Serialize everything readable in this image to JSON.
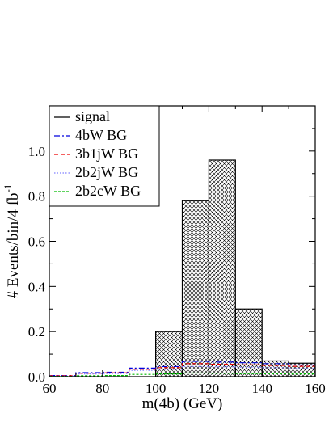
{
  "chart_data": {
    "type": "histogram",
    "xlabel": "m(4b) (GeV)",
    "ylabel": "# Events/bin/4 fb",
    "ylabel_superscript": "-1",
    "xlim": [
      60,
      160
    ],
    "ylim": [
      0,
      1.2
    ],
    "xticks": [
      "60",
      "80",
      "100",
      "120",
      "140",
      "160"
    ],
    "yticks": [
      "0.0",
      "0.2",
      "0.4",
      "0.6",
      "0.8",
      "1.0"
    ],
    "bin_edges": [
      60,
      70,
      80,
      90,
      100,
      110,
      120,
      130,
      140,
      150,
      160
    ],
    "legend_position": "top-left",
    "series": [
      {
        "name": "signal",
        "color": "#000000",
        "style": "solid-hatched",
        "values": [
          0.0,
          0.0,
          0.0,
          0.0,
          0.2,
          0.78,
          0.96,
          0.3,
          0.07,
          0.06
        ]
      },
      {
        "name": "4bW BG",
        "color": "#0000dd",
        "style": "dashdot",
        "values": [
          0.005,
          0.018,
          0.02,
          0.038,
          0.045,
          0.068,
          0.065,
          0.062,
          0.058,
          0.052
        ]
      },
      {
        "name": "3b1jW BG",
        "color": "#ee0000",
        "style": "dashed",
        "values": [
          0.004,
          0.015,
          0.017,
          0.033,
          0.04,
          0.058,
          0.055,
          0.053,
          0.05,
          0.046
        ]
      },
      {
        "name": "2b2jW BG",
        "color": "#8080ff",
        "style": "dotted",
        "values": [
          0.003,
          0.012,
          0.014,
          0.028,
          0.032,
          0.045,
          0.044,
          0.042,
          0.04,
          0.037
        ]
      },
      {
        "name": "2b2cW BG",
        "color": "#00bb00",
        "style": "dashed-fine",
        "values": [
          0.001,
          0.004,
          0.005,
          0.01,
          0.012,
          0.016,
          0.015,
          0.014,
          0.013,
          0.012
        ]
      }
    ]
  }
}
